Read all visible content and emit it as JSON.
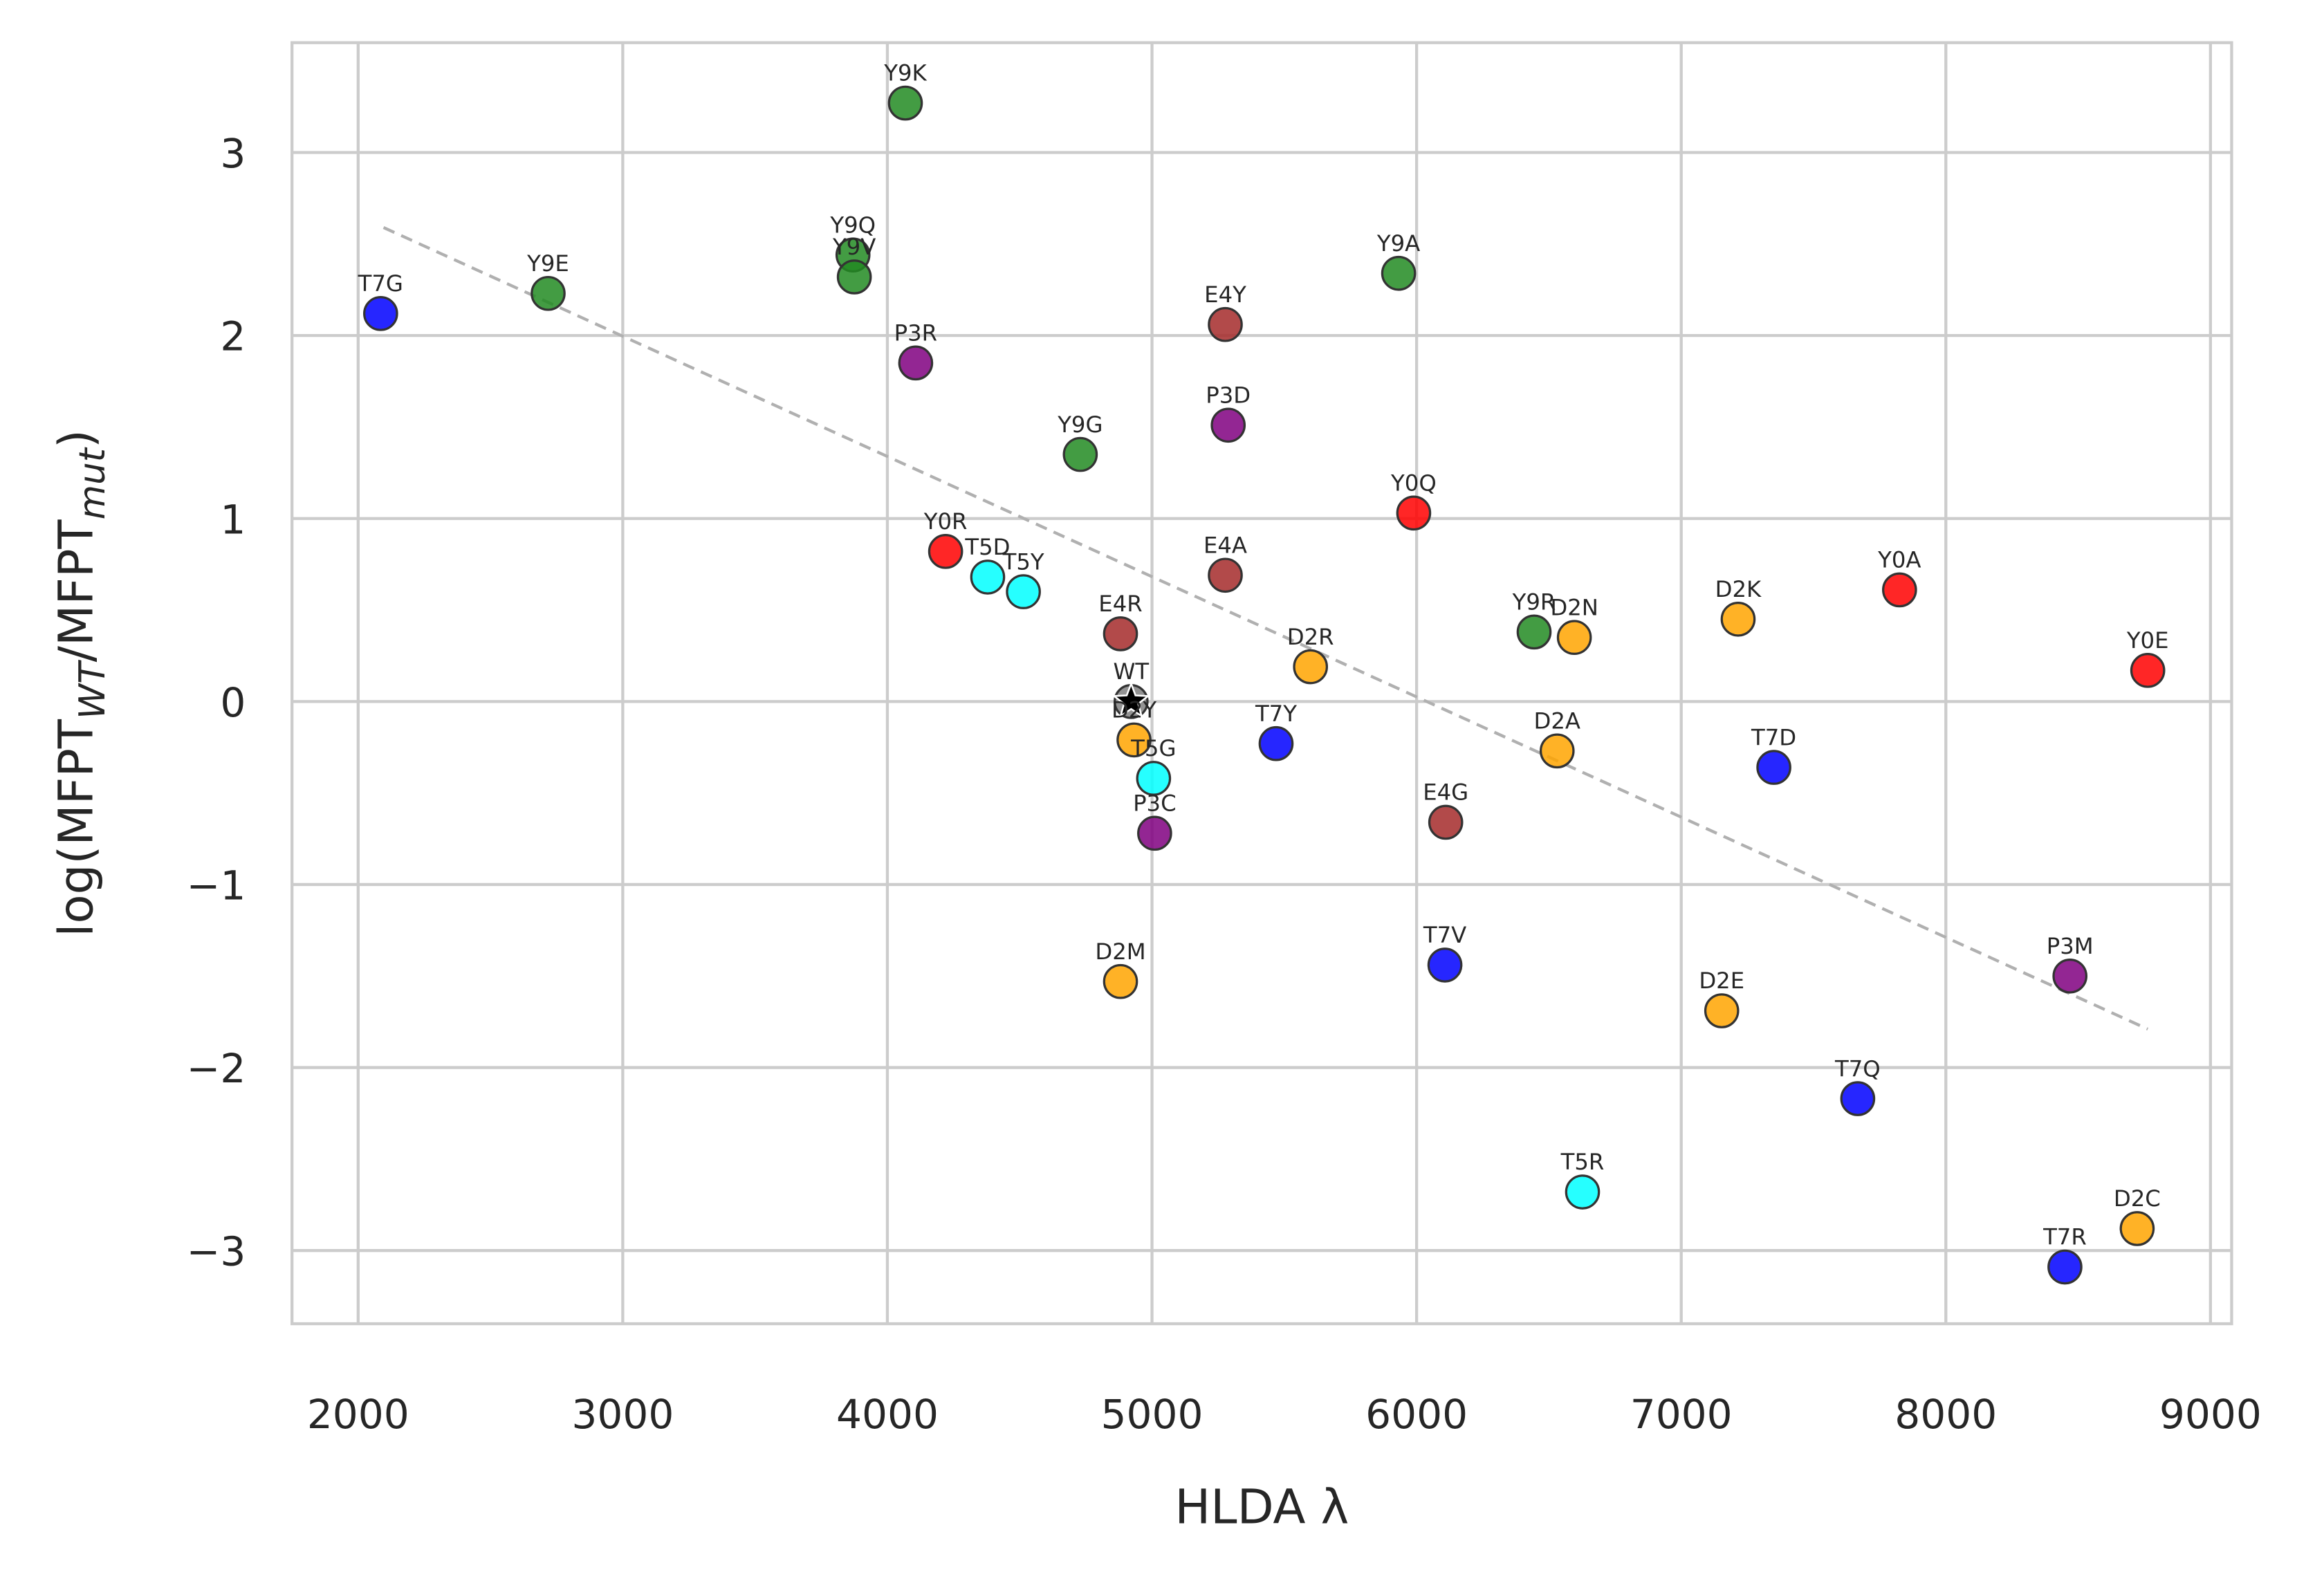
{
  "chart_data": {
    "type": "scatter",
    "xlabel": "HLDA λ",
    "ylabel": {
      "prefix": "log(MFPT",
      "sub1": "WT",
      "mid": "/MFPT",
      "sub2": "mut",
      "suffix": ")"
    },
    "xlim": [
      1750,
      9080
    ],
    "ylim": [
      -3.4,
      3.6
    ],
    "xticks": [
      2000,
      3000,
      4000,
      5000,
      6000,
      7000,
      8000,
      9000
    ],
    "yticks": [
      3,
      2,
      1,
      0,
      -1,
      -2,
      -3
    ],
    "ytick_labels": [
      "3",
      "2",
      "1",
      "0",
      "−1",
      "−2",
      "−3"
    ],
    "grid": true,
    "colors": {
      "Y9": "#228b22",
      "T7": "#0000ff",
      "Y0": "#ff0000",
      "E4": "#a52a2a",
      "P3": "#800080",
      "T5": "#00ffff",
      "D2": "#ffa500",
      "WT": "#808080"
    },
    "trend_line": {
      "style": "dashed",
      "color": "#b0b0b0",
      "x": [
        2096,
        8763
      ],
      "y": [
        2.59,
        -1.79
      ]
    },
    "points": [
      {
        "label": "T7G",
        "group": "T7",
        "x": 2085,
        "y": 2.12
      },
      {
        "label": "Y9E",
        "group": "Y9",
        "x": 2718,
        "y": 2.23
      },
      {
        "label": "Y9K",
        "group": "Y9",
        "x": 4068,
        "y": 3.27
      },
      {
        "label": "Y9Q",
        "group": "Y9",
        "x": 3870,
        "y": 2.44
      },
      {
        "label": "Y9V",
        "group": "Y9",
        "x": 3875,
        "y": 2.32
      },
      {
        "label": "P3R",
        "group": "P3",
        "x": 4107,
        "y": 1.85
      },
      {
        "label": "Y9G",
        "group": "Y9",
        "x": 4729,
        "y": 1.35
      },
      {
        "label": "E4Y",
        "group": "E4",
        "x": 5277,
        "y": 2.06
      },
      {
        "label": "P3D",
        "group": "P3",
        "x": 5288,
        "y": 1.51
      },
      {
        "label": "Y9A",
        "group": "Y9",
        "x": 5932,
        "y": 2.34
      },
      {
        "label": "Y0Q",
        "group": "Y0",
        "x": 5989,
        "y": 1.03
      },
      {
        "label": "E4A",
        "group": "E4",
        "x": 5277,
        "y": 0.69
      },
      {
        "label": "Y0R",
        "group": "Y0",
        "x": 4220,
        "y": 0.82
      },
      {
        "label": "T5D",
        "group": "T5",
        "x": 4379,
        "y": 0.68
      },
      {
        "label": "T5Y",
        "group": "T5",
        "x": 4514,
        "y": 0.6
      },
      {
        "label": "E4R",
        "group": "E4",
        "x": 4881,
        "y": 0.37
      },
      {
        "label": "WT",
        "group": "WT",
        "x": 4921,
        "y": 0.0
      },
      {
        "label": "D2Y",
        "group": "D2",
        "x": 4932,
        "y": -0.21
      },
      {
        "label": "T5G",
        "group": "T5",
        "x": 5006,
        "y": -0.42
      },
      {
        "label": "P3C",
        "group": "P3",
        "x": 5010,
        "y": -0.72
      },
      {
        "label": "D2R",
        "group": "D2",
        "x": 5599,
        "y": 0.19
      },
      {
        "label": "T7Y",
        "group": "T7",
        "x": 5469,
        "y": -0.23
      },
      {
        "label": "E4G",
        "group": "E4",
        "x": 6110,
        "y": -0.66
      },
      {
        "label": "Y9R",
        "group": "Y9",
        "x": 6444,
        "y": 0.38
      },
      {
        "label": "D2N",
        "group": "D2",
        "x": 6596,
        "y": 0.35
      },
      {
        "label": "D2A",
        "group": "D2",
        "x": 6531,
        "y": -0.27
      },
      {
        "label": "D2K",
        "group": "D2",
        "x": 7215,
        "y": 0.45
      },
      {
        "label": "Y0A",
        "group": "Y0",
        "x": 7825,
        "y": 0.61
      },
      {
        "label": "Y0E",
        "group": "Y0",
        "x": 8763,
        "y": 0.17
      },
      {
        "label": "T7D",
        "group": "T7",
        "x": 7350,
        "y": -0.36
      },
      {
        "label": "D2M",
        "group": "D2",
        "x": 4881,
        "y": -1.53
      },
      {
        "label": "T7V",
        "group": "T7",
        "x": 6107,
        "y": -1.44
      },
      {
        "label": "D2E",
        "group": "D2",
        "x": 7153,
        "y": -1.69
      },
      {
        "label": "P3M",
        "group": "P3",
        "x": 8469,
        "y": -1.5
      },
      {
        "label": "T7Q",
        "group": "T7",
        "x": 7667,
        "y": -2.17
      },
      {
        "label": "T5R",
        "group": "T5",
        "x": 6627,
        "y": -2.68
      },
      {
        "label": "D2C",
        "group": "D2",
        "x": 8723,
        "y": -2.88
      },
      {
        "label": "T7R",
        "group": "T7",
        "x": 8450,
        "y": -3.09
      }
    ]
  }
}
